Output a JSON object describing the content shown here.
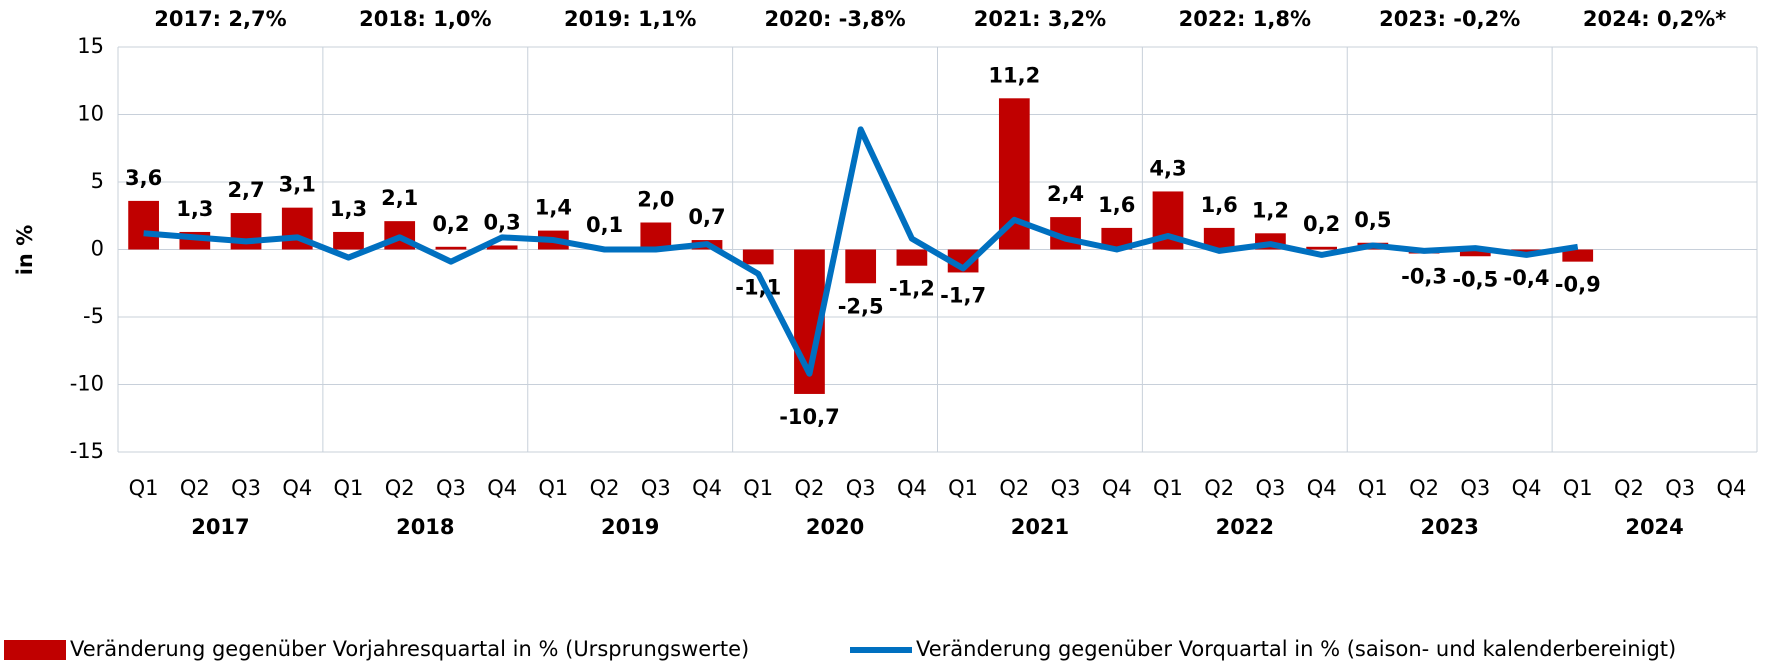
{
  "chart_data": {
    "type": "bar_line",
    "y_label": "in %",
    "categories": [
      "Q1",
      "Q2",
      "Q3",
      "Q4",
      "Q1",
      "Q2",
      "Q3",
      "Q4",
      "Q1",
      "Q2",
      "Q3",
      "Q4",
      "Q1",
      "Q2",
      "Q3",
      "Q4",
      "Q1",
      "Q2",
      "Q3",
      "Q4",
      "Q1",
      "Q2",
      "Q3",
      "Q4",
      "Q1",
      "Q2",
      "Q3",
      "Q4",
      "Q1",
      "Q2",
      "Q3",
      "Q4"
    ],
    "years": [
      "2017",
      "2018",
      "2019",
      "2020",
      "2021",
      "2022",
      "2023",
      "2024"
    ],
    "year_annotations": [
      "2017: 2,7%",
      "2018: 1,0%",
      "2019: 1,1%",
      "2020: -3,8%",
      "2021: 3,2%",
      "2022: 1,8%",
      "2023: -0,2%",
      "2024: 0,2%*"
    ],
    "ylim": [
      -15,
      15
    ],
    "yticks": [
      -15,
      -10,
      -5,
      0,
      5,
      10,
      15
    ],
    "grid": true,
    "series": [
      {
        "name": "Veränderung gegenüber Vorjahresquartal in % (Ursprungswerte)",
        "type": "bar",
        "color": "#c00000",
        "values": [
          3.6,
          1.3,
          2.7,
          3.1,
          1.3,
          2.1,
          0.2,
          0.3,
          1.4,
          0.1,
          2.0,
          0.7,
          -1.1,
          -10.7,
          -2.5,
          -1.2,
          -1.7,
          11.2,
          2.4,
          1.6,
          4.3,
          1.6,
          1.2,
          0.2,
          0.5,
          -0.3,
          -0.5,
          -0.4,
          -0.9,
          null,
          null,
          null
        ],
        "value_labels": [
          "3,6",
          "1,3",
          "2,7",
          "3,1",
          "1,3",
          "2,1",
          "0,2",
          "0,3",
          "1,4",
          "0,1",
          "2,0",
          "0,7",
          "-1,1",
          "-10,7",
          "-2,5",
          "-1,2",
          "-1,7",
          "11,2",
          "2,4",
          "1,6",
          "4,3",
          "1,6",
          "1,2",
          "0,2",
          "0,5",
          "-0,3",
          "-0,5",
          "-0,4",
          "-0,9",
          null,
          null,
          null
        ]
      },
      {
        "name": "Veränderung gegenüber Vorquartal in % (saison- und kalenderbereinigt)",
        "type": "line",
        "color": "#0070c0",
        "values": [
          1.2,
          0.9,
          0.6,
          0.9,
          -0.6,
          0.9,
          -0.9,
          0.9,
          0.7,
          0.0,
          0.0,
          0.4,
          -1.8,
          -9.2,
          8.9,
          0.8,
          -1.4,
          2.2,
          0.8,
          0.0,
          1.0,
          -0.1,
          0.4,
          -0.4,
          0.3,
          -0.1,
          0.1,
          -0.4,
          0.2,
          null,
          null,
          null
        ]
      }
    ]
  }
}
